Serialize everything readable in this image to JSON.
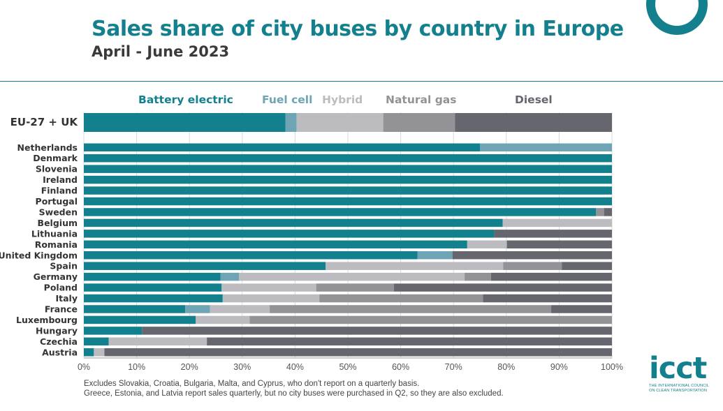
{
  "header": {
    "title": "Sales share of city buses by country in Europe",
    "subtitle": "April - June 2023"
  },
  "logo": {
    "word": "icct",
    "tagline_1": "THE INTERNATIONAL COUNCIL",
    "tagline_2": "ON CLEAN TRANSPORTATION"
  },
  "notes": [
    "Excludes Slovakia, Croatia, Bulgaria, Malta, and Cyprus, who don't report on a quarterly basis.",
    "Greece, Estonia, and Latvia report sales quarterly, but no city buses were purchased in Q2, so they are also excluded."
  ],
  "chart_data": {
    "type": "bar",
    "orientation": "horizontal",
    "stacked": true,
    "title": "Sales share of city buses by country in Europe",
    "subtitle": "April - June 2023",
    "xlim": [
      0,
      100
    ],
    "x_ticks": [
      "0%",
      "10%",
      "20%",
      "30%",
      "40%",
      "50%",
      "60%",
      "70%",
      "80%",
      "90%",
      "100%"
    ],
    "grid": true,
    "legend_position": "top",
    "categories": [
      "EU-27 + UK",
      "Netherlands",
      "Denmark",
      "Slovenia",
      "Ireland",
      "Finland",
      "Portugal",
      "Sweden",
      "Belgium",
      "Lithuania",
      "Romania",
      "United Kingdom",
      "Spain",
      "Germany",
      "Poland",
      "Italy",
      "France",
      "Luxembourg",
      "Hungary",
      "Czechia",
      "Austria"
    ],
    "series": [
      {
        "name": "Battery electric",
        "color": "#13808e",
        "values": [
          38.2,
          75.0,
          100,
          100,
          100,
          100,
          100,
          97.0,
          79.3,
          77.7,
          72.6,
          63.2,
          45.8,
          25.9,
          26.1,
          26.3,
          19.2,
          21.2,
          11.0,
          4.7,
          1.9
        ]
      },
      {
        "name": "Fuel cell",
        "color": "#6ea4b4",
        "values": [
          2.1,
          25.0,
          0,
          0,
          0,
          0,
          0,
          0,
          0,
          0,
          0,
          6.6,
          0,
          3.5,
          0,
          0,
          4.7,
          0,
          0,
          0,
          0
        ]
      },
      {
        "name": "Hybrid",
        "color": "#bcbcc0",
        "values": [
          16.4,
          0,
          0,
          0,
          0,
          0,
          0,
          0,
          20.7,
          0,
          7.5,
          0,
          33.6,
          42.7,
          17.9,
          18.3,
          11.3,
          10.2,
          0,
          18.6,
          2.0
        ]
      },
      {
        "name": "Natural gas",
        "color": "#929297",
        "values": [
          13.6,
          0,
          0,
          0,
          0,
          0,
          0,
          1.5,
          0,
          0,
          0,
          0,
          11.1,
          5.0,
          14.7,
          31.0,
          53.3,
          68.6,
          0,
          0,
          0
        ]
      },
      {
        "name": "Diesel",
        "color": "#66676e",
        "values": [
          29.7,
          0,
          0,
          0,
          0,
          0,
          0,
          1.5,
          0,
          22.3,
          19.9,
          30.2,
          9.5,
          22.9,
          41.3,
          24.4,
          11.5,
          0,
          89.0,
          76.7,
          96.1
        ]
      }
    ]
  }
}
